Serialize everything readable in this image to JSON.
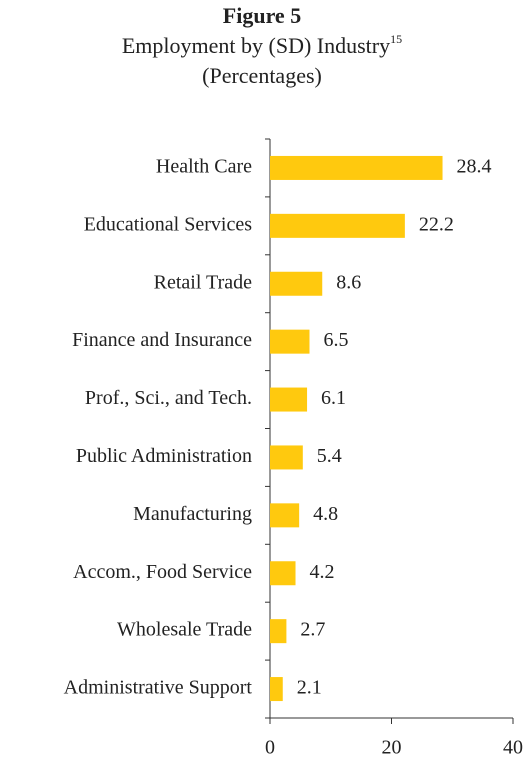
{
  "chart_data": {
    "type": "bar",
    "orientation": "horizontal",
    "title": "Figure 5",
    "subtitle": "Employment by (SD) Industry",
    "footnote_ref": "15",
    "units_label": "(Percentages)",
    "categories": [
      "Health Care",
      "Educational Services",
      "Retail Trade",
      "Finance and Insurance",
      "Prof., Sci., and Tech.",
      "Public Administration",
      "Manufacturing",
      "Accom., Food Service",
      "Wholesale Trade",
      "Administrative Support"
    ],
    "values": [
      28.4,
      22.2,
      8.6,
      6.5,
      6.1,
      5.4,
      4.8,
      4.2,
      2.7,
      2.1
    ],
    "color": "#ffc90e",
    "xlim": [
      0,
      40
    ],
    "xticks": [
      0,
      20,
      40
    ],
    "grid": false
  }
}
